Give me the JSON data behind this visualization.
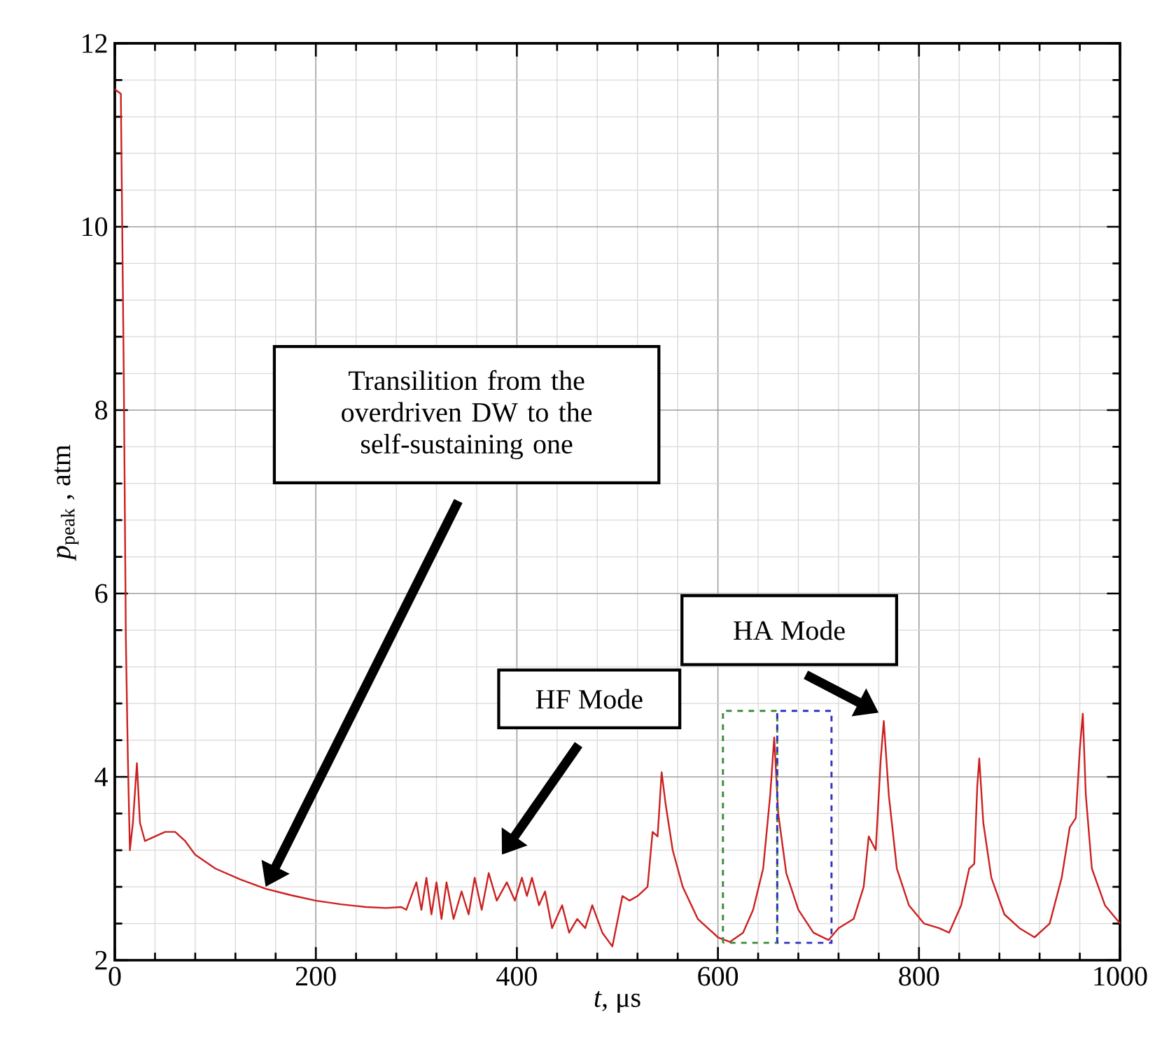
{
  "chart_data": {
    "type": "line",
    "xlabel": "*t*,  μs",
    "ylabel": "*p*$_{peak}$ , atm",
    "xlim": [
      0,
      1000
    ],
    "ylim": [
      2,
      12
    ],
    "xticks": [
      0,
      200,
      400,
      600,
      800,
      1000
    ],
    "yticks": [
      2,
      4,
      6,
      8,
      10,
      12
    ],
    "grid": true,
    "x": [
      0,
      6,
      9,
      11,
      13,
      15,
      18,
      22,
      25,
      30,
      40,
      50,
      60,
      70,
      80,
      100,
      125,
      150,
      175,
      200,
      225,
      250,
      270,
      285,
      290,
      295,
      300,
      305,
      310,
      315,
      320,
      325,
      330,
      337,
      345,
      352,
      358,
      365,
      372,
      380,
      390,
      398,
      405,
      410,
      415,
      422,
      428,
      435,
      445,
      452,
      460,
      468,
      475,
      485,
      495,
      505,
      512,
      520,
      530,
      535,
      540,
      544,
      548,
      555,
      565,
      580,
      600,
      612,
      625,
      635,
      645,
      652,
      656,
      660,
      668,
      680,
      695,
      710,
      720,
      735,
      745,
      750,
      757,
      762,
      765,
      770,
      778,
      790,
      805,
      820,
      830,
      842,
      850,
      855,
      858,
      860,
      864,
      872,
      885,
      900,
      915,
      930,
      942,
      950,
      956,
      960,
      963,
      966,
      972,
      985,
      1000
    ],
    "series": [
      {
        "color": "#cc2020",
        "values": [
          11.5,
          11.45,
          8.3,
          5.5,
          4.2,
          3.2,
          3.5,
          4.15,
          3.5,
          3.3,
          3.35,
          3.4,
          3.4,
          3.3,
          3.15,
          3.0,
          2.88,
          2.78,
          2.71,
          2.65,
          2.61,
          2.58,
          2.57,
          2.58,
          2.55,
          2.7,
          2.85,
          2.55,
          2.9,
          2.5,
          2.85,
          2.45,
          2.85,
          2.45,
          2.75,
          2.5,
          2.9,
          2.55,
          2.95,
          2.65,
          2.85,
          2.65,
          2.9,
          2.7,
          2.9,
          2.6,
          2.75,
          2.35,
          2.6,
          2.3,
          2.45,
          2.35,
          2.6,
          2.3,
          2.15,
          2.7,
          2.65,
          2.7,
          2.8,
          3.4,
          3.35,
          4.05,
          3.7,
          3.2,
          2.8,
          2.45,
          2.25,
          2.2,
          2.3,
          2.55,
          3.0,
          3.8,
          4.43,
          3.6,
          2.95,
          2.55,
          2.3,
          2.22,
          2.35,
          2.45,
          2.8,
          3.35,
          3.2,
          4.2,
          4.61,
          3.8,
          3.0,
          2.6,
          2.4,
          2.35,
          2.3,
          2.6,
          3.0,
          3.05,
          3.9,
          4.2,
          3.5,
          2.9,
          2.5,
          2.35,
          2.25,
          2.4,
          2.9,
          3.45,
          3.55,
          4.3,
          4.69,
          3.8,
          3.0,
          2.6,
          2.4
        ]
      }
    ],
    "annotations": [
      "Transilition from the overdriven DW to the self-sustaining one",
      "HF Mode",
      "HA Mode"
    ]
  }
}
